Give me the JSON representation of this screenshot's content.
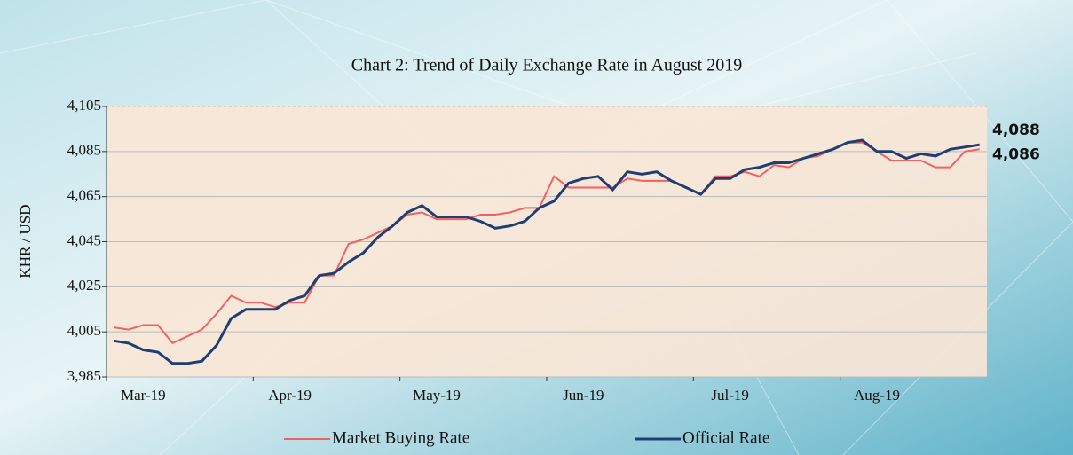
{
  "chart_data": {
    "type": "line",
    "title": "Chart 2: Trend of Daily Exchange Rate in August 2019",
    "y_label": "KHR / USD",
    "categories": [
      "Mar-19",
      null,
      null,
      null,
      null,
      null,
      null,
      null,
      null,
      null,
      "Apr-19",
      null,
      null,
      null,
      null,
      null,
      null,
      null,
      null,
      null,
      "May-19",
      null,
      null,
      null,
      null,
      null,
      null,
      null,
      null,
      null,
      "Jun-19",
      null,
      null,
      null,
      null,
      null,
      null,
      null,
      null,
      null,
      "Jul-19",
      null,
      null,
      null,
      null,
      null,
      null,
      null,
      null,
      null,
      "Aug-19",
      null,
      null,
      null,
      null,
      null,
      null,
      null,
      null,
      null
    ],
    "series": [
      {
        "name": "Market Buying Rate",
        "color": "#f06262",
        "values": [
          4007,
          4006,
          4008,
          4008,
          4000,
          4003,
          4006,
          4013,
          4021,
          4018,
          4018,
          4016,
          4018,
          4018,
          4030,
          4030,
          4044,
          4046,
          4049,
          4052,
          4057,
          4058,
          4055,
          4055,
          4055,
          4057,
          4057,
          4058,
          4060,
          4060,
          4074,
          4069,
          4069,
          4069,
          4069,
          4073,
          4072,
          4072,
          4072,
          4069,
          4066,
          4074,
          4074,
          4076,
          4074,
          4079,
          4078,
          4082,
          4083,
          4086,
          4089,
          4089,
          4085,
          4081,
          4081,
          4081,
          4078,
          4078,
          4085,
          4086
        ],
        "value_labels": [
          null,
          null,
          null,
          null,
          null,
          null,
          null,
          null,
          null,
          null,
          null,
          null,
          null,
          null,
          null,
          null,
          null,
          null,
          null,
          null,
          null,
          null,
          null,
          null,
          null,
          null,
          null,
          null,
          null,
          null,
          null,
          null,
          null,
          null,
          null,
          null,
          null,
          null,
          null,
          null,
          null,
          null,
          null,
          null,
          null,
          null,
          null,
          null,
          null,
          null,
          null,
          null,
          null,
          null,
          null,
          null,
          null,
          null,
          null,
          "4,086"
        ]
      },
      {
        "name": "Official Rate",
        "color": "#1f3f73",
        "values": [
          4001,
          4000,
          3997,
          3996,
          3991,
          3991,
          3992,
          3999,
          4011,
          4015,
          4015,
          4015,
          4019,
          4021,
          4030,
          4031,
          4036,
          4040,
          4047,
          4052,
          4058,
          4061,
          4056,
          4056,
          4056,
          4054,
          4051,
          4052,
          4054,
          4060,
          4063,
          4071,
          4073,
          4074,
          4068,
          4076,
          4075,
          4076,
          4072,
          4069,
          4066,
          4073,
          4073,
          4077,
          4078,
          4080,
          4080,
          4082,
          4084,
          4086,
          4089,
          4090,
          4085,
          4085,
          4082,
          4084,
          4083,
          4086,
          4087,
          4088
        ],
        "value_labels": [
          null,
          null,
          null,
          null,
          null,
          null,
          null,
          null,
          null,
          null,
          null,
          null,
          null,
          null,
          null,
          null,
          null,
          null,
          null,
          null,
          null,
          null,
          null,
          null,
          null,
          null,
          null,
          null,
          null,
          null,
          null,
          null,
          null,
          null,
          null,
          null,
          null,
          null,
          null,
          null,
          null,
          null,
          null,
          null,
          null,
          null,
          null,
          null,
          null,
          null,
          null,
          null,
          null,
          null,
          null,
          null,
          null,
          null,
          null,
          "4,088"
        ]
      }
    ],
    "ylim": [
      3985,
      4105
    ],
    "yticks": [
      {
        "value": 3985,
        "label": "3,985"
      },
      {
        "value": 4005,
        "label": "4,005"
      },
      {
        "value": 4025,
        "label": "4,025"
      },
      {
        "value": 4045,
        "label": "4,045"
      },
      {
        "value": 4065,
        "label": "4,065"
      },
      {
        "value": 4085,
        "label": "4,085"
      },
      {
        "value": 4105,
        "label": "4,105"
      }
    ],
    "grid": true,
    "legend": "bottom"
  }
}
